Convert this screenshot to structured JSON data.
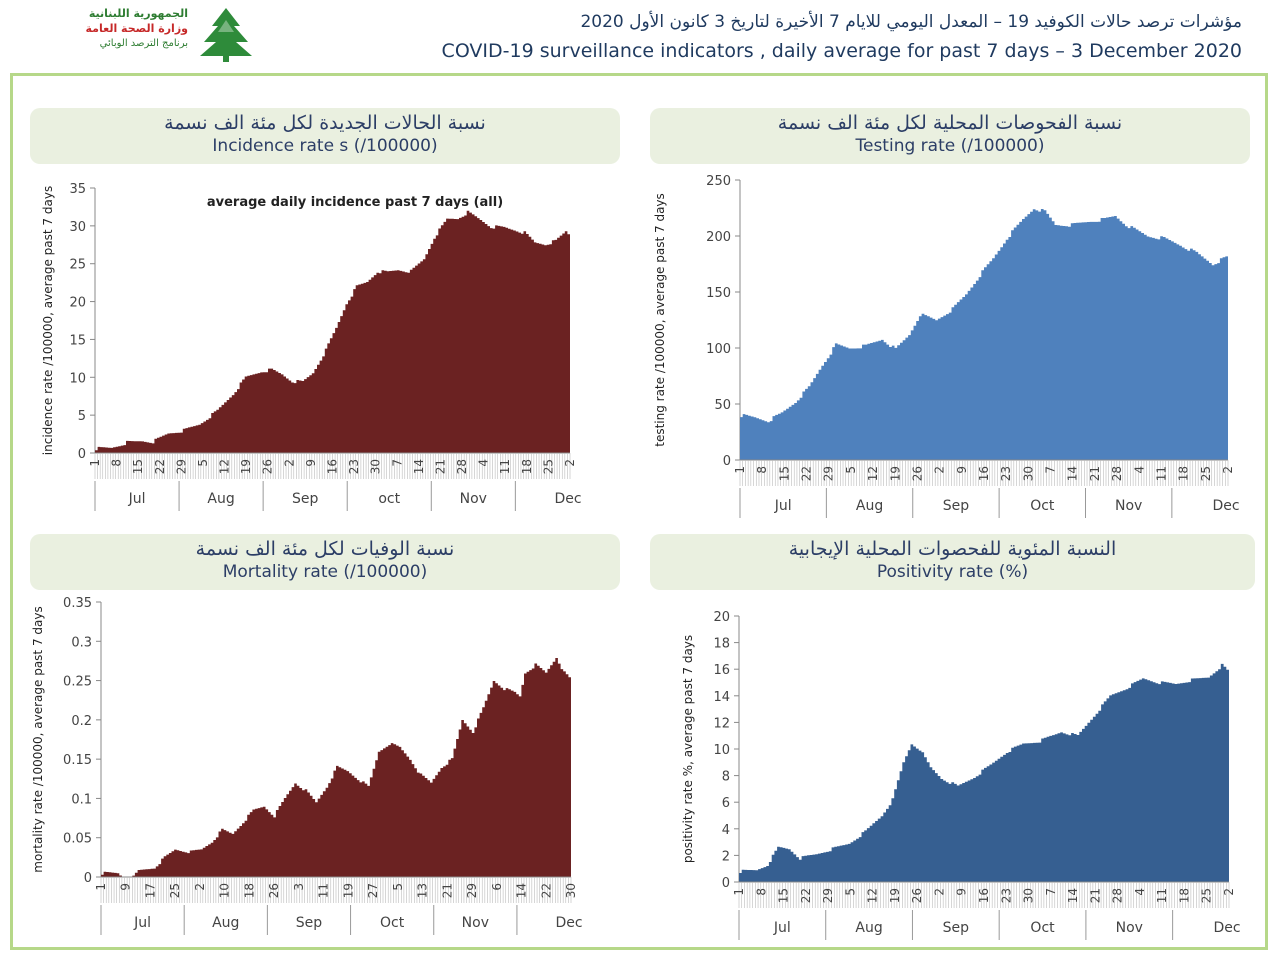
{
  "header": {
    "logo_line1": "الجمهورية اللبنانية",
    "logo_line2": "وزارة الصحة العامة",
    "logo_line3": "برنامج الترصد الوبائي",
    "title_ar": "مؤشرات ترصد حالات الكوفيد 19 – المعدل اليومي للايام 7 الأخيرة لتاريخ 3 كانون الأول 2020",
    "title_en": "COVID-19 surveillance indicators , daily average for past 7 days – 3 December 2020"
  },
  "panels": {
    "incidence": {
      "title_ar": "نسبة الحالات الجديدة لكل مئة الف نسمة",
      "title_en": "Incidence rate s  (/100000)"
    },
    "testing": {
      "title_ar": "نسبة الفحوصات المحلية لكل مئة الف نسمة",
      "title_en": "Testing rate (/100000)"
    },
    "mortality": {
      "title_ar": "نسبة الوفيات لكل مئة الف نسمة",
      "title_en": "Mortality rate (/100000)"
    },
    "positivity": {
      "title_ar": "النسبة المئوية للفحصوات المحلية الإيجابية",
      "title_en": "Positivity rate (%)"
    }
  },
  "chart_data": [
    {
      "id": "incidence",
      "type": "area",
      "title": "average daily incidence past 7 days (all)",
      "ylabel": "incidence rate /100000, average past 7 days",
      "ylim": [
        0,
        35
      ],
      "yticks": [
        0,
        5,
        10,
        15,
        20,
        25,
        30,
        35
      ],
      "color": "#6b2222",
      "x_tick_labels": [
        "1",
        "8",
        "15",
        "22",
        "29",
        "5",
        "12",
        "19",
        "26",
        "2",
        "9",
        "16",
        "23",
        "30",
        "7",
        "14",
        "21",
        "28",
        "4",
        "11",
        "18",
        "25",
        "2"
      ],
      "months": [
        "Jul",
        "Aug",
        "Sep",
        "oct",
        "Nov",
        "Dec"
      ],
      "anchors": [
        [
          0,
          0.6
        ],
        [
          6,
          0.7
        ],
        [
          12,
          1.4
        ],
        [
          18,
          1.6
        ],
        [
          22,
          1.5
        ],
        [
          28,
          2.6
        ],
        [
          34,
          3.0
        ],
        [
          40,
          3.8
        ],
        [
          47,
          5.6
        ],
        [
          53,
          7.8
        ],
        [
          58,
          10.0
        ],
        [
          64,
          10.8
        ],
        [
          68,
          11.0
        ],
        [
          72,
          10.4
        ],
        [
          76,
          9.5
        ],
        [
          80,
          9.4
        ],
        [
          84,
          10.6
        ],
        [
          89,
          13.6
        ],
        [
          93,
          16.5
        ],
        [
          97,
          19.8
        ],
        [
          101,
          22.0
        ],
        [
          105,
          22.6
        ],
        [
          109,
          24.0
        ],
        [
          113,
          23.9
        ],
        [
          117,
          24.2
        ],
        [
          122,
          24.0
        ],
        [
          127,
          25.6
        ],
        [
          131,
          28.5
        ],
        [
          136,
          30.9
        ],
        [
          140,
          31.0
        ],
        [
          144,
          31.8
        ],
        [
          149,
          30.8
        ],
        [
          153,
          29.9
        ],
        [
          158,
          29.8
        ],
        [
          162,
          29.5
        ],
        [
          166,
          29.1
        ],
        [
          170,
          27.8
        ],
        [
          174,
          27.6
        ],
        [
          178,
          28.0
        ],
        [
          182,
          29.3
        ],
        [
          184,
          28.6
        ]
      ]
    },
    {
      "id": "testing",
      "type": "area",
      "title": "",
      "ylabel": "testing rate /100000, average past 7 days",
      "ylim": [
        0,
        250
      ],
      "yticks": [
        0,
        50,
        100,
        150,
        200,
        250
      ],
      "color": "#4f81bd",
      "x_tick_labels": [
        "1",
        "8",
        "15",
        "22",
        "29",
        "5",
        "12",
        "19",
        "26",
        "2",
        "9",
        "16",
        "23",
        "30",
        "7",
        "14",
        "21",
        "28",
        "4",
        "11",
        "18",
        "25",
        "2"
      ],
      "months": [
        "Jul",
        "Aug",
        "Sep",
        "Oct",
        "Nov",
        "Dec"
      ],
      "anchors": [
        [
          0,
          40
        ],
        [
          5,
          38
        ],
        [
          10,
          35
        ],
        [
          15,
          42
        ],
        [
          20,
          52
        ],
        [
          25,
          65
        ],
        [
          30,
          85
        ],
        [
          35,
          103
        ],
        [
          40,
          100
        ],
        [
          46,
          102
        ],
        [
          52,
          108
        ],
        [
          57,
          99
        ],
        [
          62,
          112
        ],
        [
          66,
          130
        ],
        [
          72,
          125
        ],
        [
          78,
          135
        ],
        [
          83,
          148
        ],
        [
          88,
          165
        ],
        [
          93,
          180
        ],
        [
          98,
          198
        ],
        [
          104,
          215
        ],
        [
          108,
          225
        ],
        [
          112,
          222
        ],
        [
          116,
          210
        ],
        [
          122,
          210
        ],
        [
          128,
          213
        ],
        [
          134,
          215
        ],
        [
          138,
          218
        ],
        [
          142,
          210
        ],
        [
          146,
          205
        ],
        [
          150,
          200
        ],
        [
          156,
          198
        ],
        [
          162,
          192
        ],
        [
          168,
          185
        ],
        [
          174,
          175
        ],
        [
          178,
          180
        ],
        [
          180,
          182
        ]
      ]
    },
    {
      "id": "mortality",
      "type": "area",
      "title": "",
      "ylabel": "mortality rate /100000, average past 7 days",
      "ylim": [
        0,
        0.35
      ],
      "yticks": [
        0,
        0.05,
        0.1,
        0.15,
        0.2,
        0.25,
        0.3,
        0.35
      ],
      "color": "#6b2222",
      "x_tick_labels": [
        "1",
        "9",
        "17",
        "25",
        "2",
        "10",
        "18",
        "26",
        "3",
        "11",
        "19",
        "27",
        "5",
        "13",
        "21",
        "29",
        "6",
        "14",
        "22",
        "30"
      ],
      "months": [
        "Jul",
        "Aug",
        "Sep",
        "Oct",
        "Nov",
        "Dec"
      ],
      "anchors": [
        [
          0,
          0.005
        ],
        [
          6,
          0.005
        ],
        [
          8,
          0.0
        ],
        [
          12,
          0.0
        ],
        [
          14,
          0.008
        ],
        [
          20,
          0.012
        ],
        [
          24,
          0.025
        ],
        [
          28,
          0.035
        ],
        [
          34,
          0.032
        ],
        [
          38,
          0.035
        ],
        [
          42,
          0.045
        ],
        [
          46,
          0.06
        ],
        [
          50,
          0.055
        ],
        [
          54,
          0.07
        ],
        [
          58,
          0.085
        ],
        [
          62,
          0.09
        ],
        [
          66,
          0.078
        ],
        [
          70,
          0.1
        ],
        [
          74,
          0.12
        ],
        [
          78,
          0.11
        ],
        [
          82,
          0.095
        ],
        [
          86,
          0.115
        ],
        [
          90,
          0.14
        ],
        [
          94,
          0.135
        ],
        [
          98,
          0.125
        ],
        [
          102,
          0.115
        ],
        [
          106,
          0.16
        ],
        [
          110,
          0.17
        ],
        [
          114,
          0.165
        ],
        [
          118,
          0.15
        ],
        [
          122,
          0.13
        ],
        [
          126,
          0.12
        ],
        [
          130,
          0.14
        ],
        [
          134,
          0.15
        ],
        [
          138,
          0.2
        ],
        [
          142,
          0.185
        ],
        [
          146,
          0.215
        ],
        [
          150,
          0.25
        ],
        [
          154,
          0.24
        ],
        [
          158,
          0.235
        ],
        [
          160,
          0.23
        ],
        [
          162,
          0.26
        ],
        [
          166,
          0.27
        ],
        [
          170,
          0.26
        ],
        [
          174,
          0.28
        ],
        [
          177,
          0.26
        ],
        [
          180,
          0.25
        ]
      ]
    },
    {
      "id": "positivity",
      "type": "area",
      "title": "",
      "ylabel": "positivity rate %, average past 7 days",
      "ylim": [
        0,
        20
      ],
      "yticks": [
        0,
        2,
        4,
        6,
        8,
        10,
        12,
        14,
        16,
        18,
        20
      ],
      "color": "#365f91",
      "x_tick_labels": [
        "1",
        "8",
        "15",
        "22",
        "29",
        "5",
        "12",
        "19",
        "26",
        "2",
        "9",
        "16",
        "23",
        "30",
        "7",
        "14",
        "21",
        "28",
        "4",
        "11",
        "18",
        "25",
        "2"
      ],
      "months": [
        "Jul",
        "Aug",
        "Sep",
        "Oct",
        "Nov",
        "Dec"
      ],
      "anchors": [
        [
          0,
          0.8
        ],
        [
          6,
          0.9
        ],
        [
          10,
          1.3
        ],
        [
          14,
          2.6
        ],
        [
          18,
          2.5
        ],
        [
          22,
          1.8
        ],
        [
          28,
          2.1
        ],
        [
          34,
          2.5
        ],
        [
          40,
          2.9
        ],
        [
          46,
          3.8
        ],
        [
          52,
          5.0
        ],
        [
          56,
          6.2
        ],
        [
          60,
          9.0
        ],
        [
          63,
          10.4
        ],
        [
          66,
          10.0
        ],
        [
          70,
          8.6
        ],
        [
          74,
          7.8
        ],
        [
          80,
          7.2
        ],
        [
          86,
          7.9
        ],
        [
          92,
          8.8
        ],
        [
          98,
          9.8
        ],
        [
          104,
          10.4
        ],
        [
          110,
          10.6
        ],
        [
          118,
          11.3
        ],
        [
          124,
          11.0
        ],
        [
          130,
          12.5
        ],
        [
          136,
          14.0
        ],
        [
          142,
          14.6
        ],
        [
          148,
          15.3
        ],
        [
          154,
          15.0
        ],
        [
          160,
          14.9
        ],
        [
          166,
          15.2
        ],
        [
          172,
          15.4
        ],
        [
          177,
          16.3
        ],
        [
          180,
          15.7
        ]
      ]
    }
  ]
}
